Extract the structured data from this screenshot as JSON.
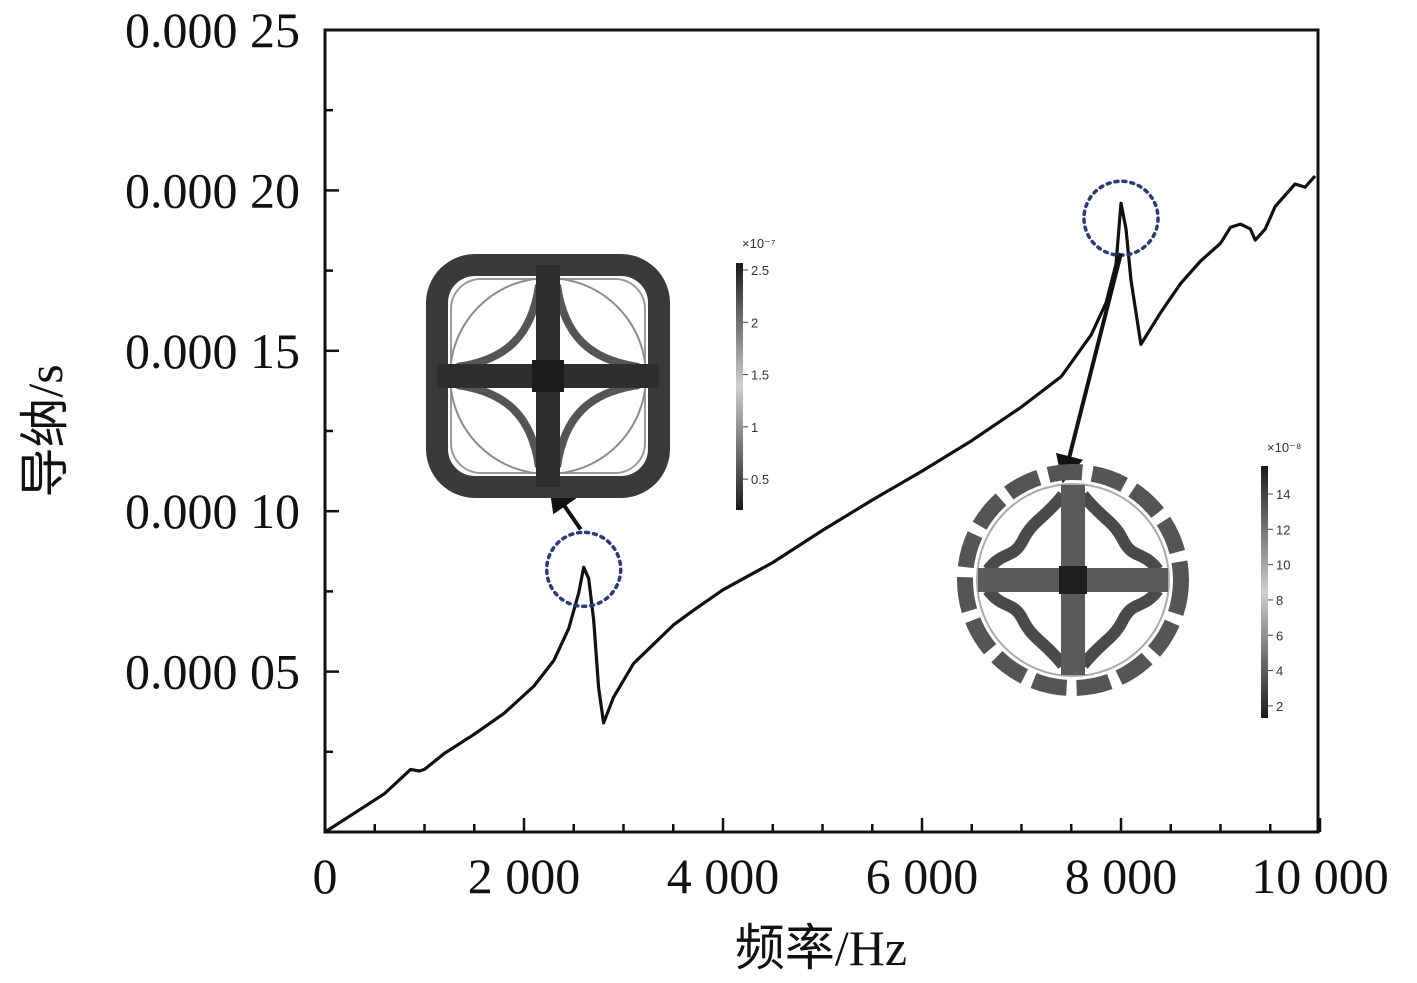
{
  "chart_data": {
    "type": "line",
    "xlabel": "频率/Hz",
    "ylabel": "导纳/s",
    "xlim": [
      0,
      10000
    ],
    "ylim": [
      0,
      0.00025
    ],
    "x_ticks": [
      0,
      2000,
      4000,
      6000,
      8000,
      10000
    ],
    "x_tick_labels": [
      "0",
      "2 000",
      "4 000",
      "6 000",
      "8 000",
      "10 000"
    ],
    "y_ticks": [
      5e-05,
      0.0001,
      0.00015,
      0.0002,
      0.00025
    ],
    "y_tick_labels": [
      "0.000 05",
      "0.000 10",
      "0.000 15",
      "0.000 20",
      "0.000 25"
    ],
    "grid": false,
    "series": [
      {
        "color": "#111111",
        "points": [
          [
            0,
            0.0
          ],
          [
            300,
            6e-06
          ],
          [
            600,
            1.2e-05
          ],
          [
            860,
            1.95e-05
          ],
          [
            950,
            1.9e-05
          ],
          [
            1000,
            1.95e-05
          ],
          [
            1200,
            2.45e-05
          ],
          [
            1500,
            3.05e-05
          ],
          [
            1800,
            3.7e-05
          ],
          [
            2100,
            4.55e-05
          ],
          [
            2300,
            5.35e-05
          ],
          [
            2450,
            6.35e-05
          ],
          [
            2550,
            7.45e-05
          ],
          [
            2600,
            8.25e-05
          ],
          [
            2650,
            7.9e-05
          ],
          [
            2700,
            6.6e-05
          ],
          [
            2750,
            4.5e-05
          ],
          [
            2800,
            3.4e-05
          ],
          [
            2900,
            4.2e-05
          ],
          [
            3100,
            5.25e-05
          ],
          [
            3300,
            5.85e-05
          ],
          [
            3500,
            6.45e-05
          ],
          [
            3700,
            6.9e-05
          ],
          [
            4000,
            7.55e-05
          ],
          [
            4500,
            8.4e-05
          ],
          [
            5000,
            9.4e-05
          ],
          [
            5500,
            0.0001035
          ],
          [
            6000,
            0.0001125
          ],
          [
            6500,
            0.000122
          ],
          [
            7000,
            0.0001325
          ],
          [
            7400,
            0.000142
          ],
          [
            7700,
            0.000155
          ],
          [
            7850,
            0.000165
          ],
          [
            7950,
            0.000177
          ],
          [
            8000,
            0.000196
          ],
          [
            8050,
            0.000188
          ],
          [
            8100,
            0.000172
          ],
          [
            8200,
            0.000152
          ],
          [
            8400,
            0.000162
          ],
          [
            8600,
            0.000171
          ],
          [
            8800,
            0.000178
          ],
          [
            9000,
            0.0001835
          ],
          [
            9100,
            0.0001885
          ],
          [
            9200,
            0.0001895
          ],
          [
            9300,
            0.000188
          ],
          [
            9350,
            0.0001845
          ],
          [
            9450,
            0.000188
          ],
          [
            9550,
            0.000195
          ],
          [
            9750,
            0.000202
          ],
          [
            9850,
            0.000201
          ],
          [
            9950,
            0.0002045
          ]
        ]
      }
    ],
    "annotations": {
      "circle_color": "#2a3a7a",
      "arrow_color": "#111111",
      "peaks": [
        {
          "x": 2600,
          "y": 8.25e-05
        },
        {
          "x": 8000,
          "y": 0.000196
        }
      ]
    },
    "insets": [
      {
        "scale_exponent": "×10⁻⁷",
        "scale_ticks": [
          "2.5",
          "2",
          "1.5",
          "1",
          "0.5"
        ]
      },
      {
        "scale_exponent": "×10⁻⁸",
        "scale_ticks": [
          "14",
          "12",
          "10",
          "8",
          "6",
          "4",
          "2"
        ]
      }
    ]
  }
}
